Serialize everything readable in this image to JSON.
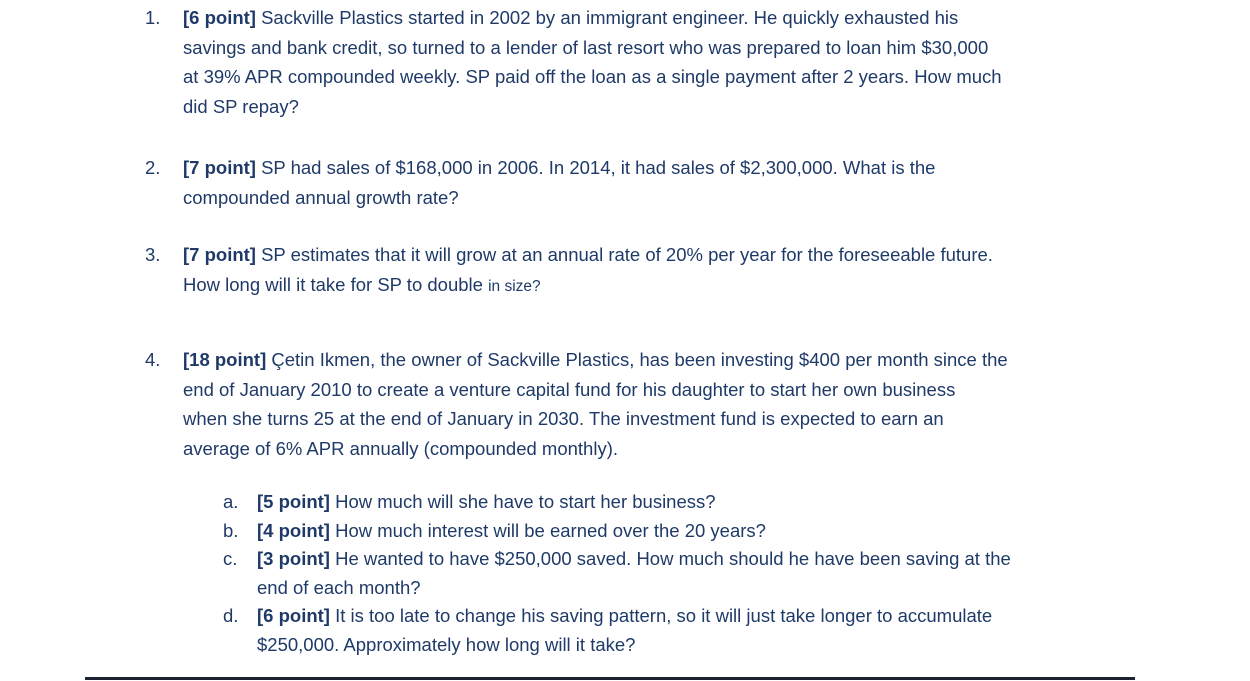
{
  "page": {
    "background": "#ffffff",
    "text_color": "#1f3a68",
    "bottom_rule_color": "#1b2230"
  },
  "document": {
    "items": [
      {
        "marker": "1.",
        "lines": [
          [
            {
              "t": "[6 point]",
              "bold": true
            },
            {
              "t": " Sackville Plastics started in 2002 by an immigrant engineer. He quickly exhausted his"
            }
          ],
          [
            {
              "t": "savings and bank credit, so turned to a lender of last resort who was prepared to loan him $30,000"
            }
          ],
          [
            {
              "t": "at 39% APR compounded weekly. SP paid off the loan as a single payment after 2 years. How much"
            }
          ],
          [
            {
              "t": "did SP repay?"
            }
          ]
        ]
      },
      {
        "marker": "2.",
        "lines": [
          [
            {
              "t": "[7 point]",
              "bold": true
            },
            {
              "t": " SP had sales of $168,000 in 2006. In 2014, it had sales of $2,300,000. What is the"
            }
          ],
          [
            {
              "t": "compounded annual growth rate?"
            }
          ]
        ]
      },
      {
        "marker": "3.",
        "lines": [
          [
            {
              "t": "[7 point]",
              "bold": true
            },
            {
              "t": " SP estimates that it will grow at an annual rate of 20% per year for the foreseeable future."
            }
          ],
          [
            {
              "t": "How long will it take for SP to double "
            },
            {
              "t": "in size?",
              "small": true
            }
          ]
        ]
      },
      {
        "marker": "4.",
        "lines": [
          [
            {
              "t": "[18 point]",
              "bold": true
            },
            {
              "t": " Çetin Ikmen, the owner of Sackville Plastics, has been investing $400 per month since the"
            }
          ],
          [
            {
              "t": "end of January 2010 to create a venture capital fund for his daughter to start her own business"
            }
          ],
          [
            {
              "t": "when she turns 25 at the end of January in 2030. The investment fund is expected to earn an"
            }
          ],
          [
            {
              "t": "average of 6% APR annually (compounded monthly)."
            }
          ]
        ],
        "subitems": [
          {
            "marker": "a.",
            "lines": [
              [
                {
                  "t": "[5 point]",
                  "bold": true
                },
                {
                  "t": " How much will she have to start her business?"
                }
              ]
            ]
          },
          {
            "marker": "b.",
            "lines": [
              [
                {
                  "t": "[4 point]",
                  "bold": true
                },
                {
                  "t": " How much interest will be earned over the 20 years?"
                }
              ]
            ]
          },
          {
            "marker": "c.",
            "lines": [
              [
                {
                  "t": "[3 point]",
                  "bold": true
                },
                {
                  "t": " He wanted to have $250,000 saved. How much should he have been saving at the"
                }
              ],
              [
                {
                  "t": "end of each month?"
                }
              ]
            ]
          },
          {
            "marker": "d.",
            "lines": [
              [
                {
                  "t": "[6 point]",
                  "bold": true
                },
                {
                  "t": " It is too late to change his saving pattern, so it will just take longer to accumulate"
                }
              ],
              [
                {
                  "t": "$250,000. Approximately how long will it take?"
                }
              ]
            ]
          }
        ]
      }
    ]
  }
}
